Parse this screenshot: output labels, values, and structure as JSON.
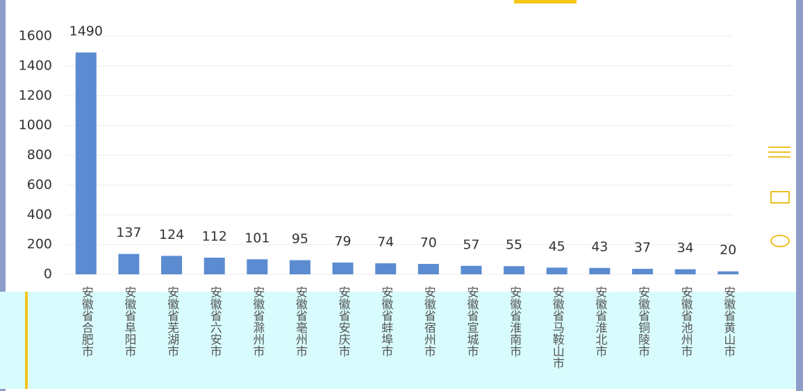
{
  "chart_data": {
    "type": "bar",
    "categories": [
      "安徽省合肥市",
      "安徽省阜阳市",
      "安徽省芜湖市",
      "安徽省六安市",
      "安徽省滁州市",
      "安徽省亳州市",
      "安徽省安庆市",
      "安徽省蚌埠市",
      "安徽省宿州市",
      "安徽省宣城市",
      "安徽省淮南市",
      "安徽省马鞍山市",
      "安徽省淮北市",
      "安徽省铜陵市",
      "安徽省池州市",
      "安徽省黄山市"
    ],
    "values": [
      1490,
      137,
      124,
      112,
      101,
      95,
      79,
      74,
      70,
      57,
      55,
      45,
      43,
      37,
      34,
      20
    ],
    "color": "#5b8bd0",
    "ylim": [
      0,
      1600
    ],
    "yticks": [
      0,
      200,
      400,
      600,
      800,
      1000,
      1200,
      1400,
      1600
    ],
    "grid": true
  }
}
